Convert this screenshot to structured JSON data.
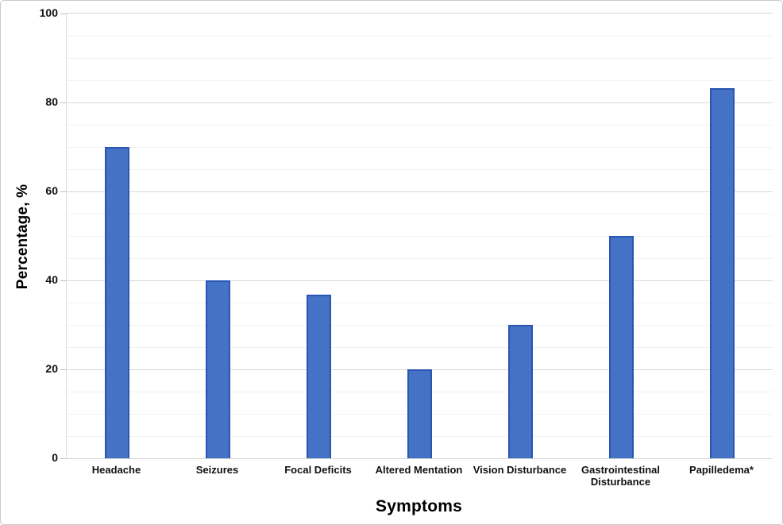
{
  "figure": {
    "background": "#ffffff",
    "border_color": "#c9c9c9"
  },
  "chart_data": {
    "type": "bar",
    "title": "",
    "xlabel": "Symptoms",
    "ylabel": "Percentage, %",
    "categories": [
      "Headache",
      "Seizures",
      "Focal Deficits",
      "Altered Mentation",
      "Vision Disturbance",
      "Gastrointestinal Disturbance",
      "Papilledema*"
    ],
    "values": [
      70,
      40,
      36.7,
      20,
      30,
      50,
      83.3
    ],
    "ylim": [
      0,
      100
    ],
    "yticks": [
      0,
      20,
      40,
      60,
      80,
      100
    ],
    "ytick_step_minor": 5,
    "grid": "horizontal, minor every 5 (light) and major every 20 (darker)",
    "legend": "none",
    "bar_color": "#4472c4",
    "bar_border_color": "#2a55b2",
    "gridline_major_color": "#d9d9d9",
    "gridline_minor_color": "#f1f1f1",
    "axis_line_color": "#dcdcdc",
    "tick_mark_color": "#bdbdbd"
  }
}
